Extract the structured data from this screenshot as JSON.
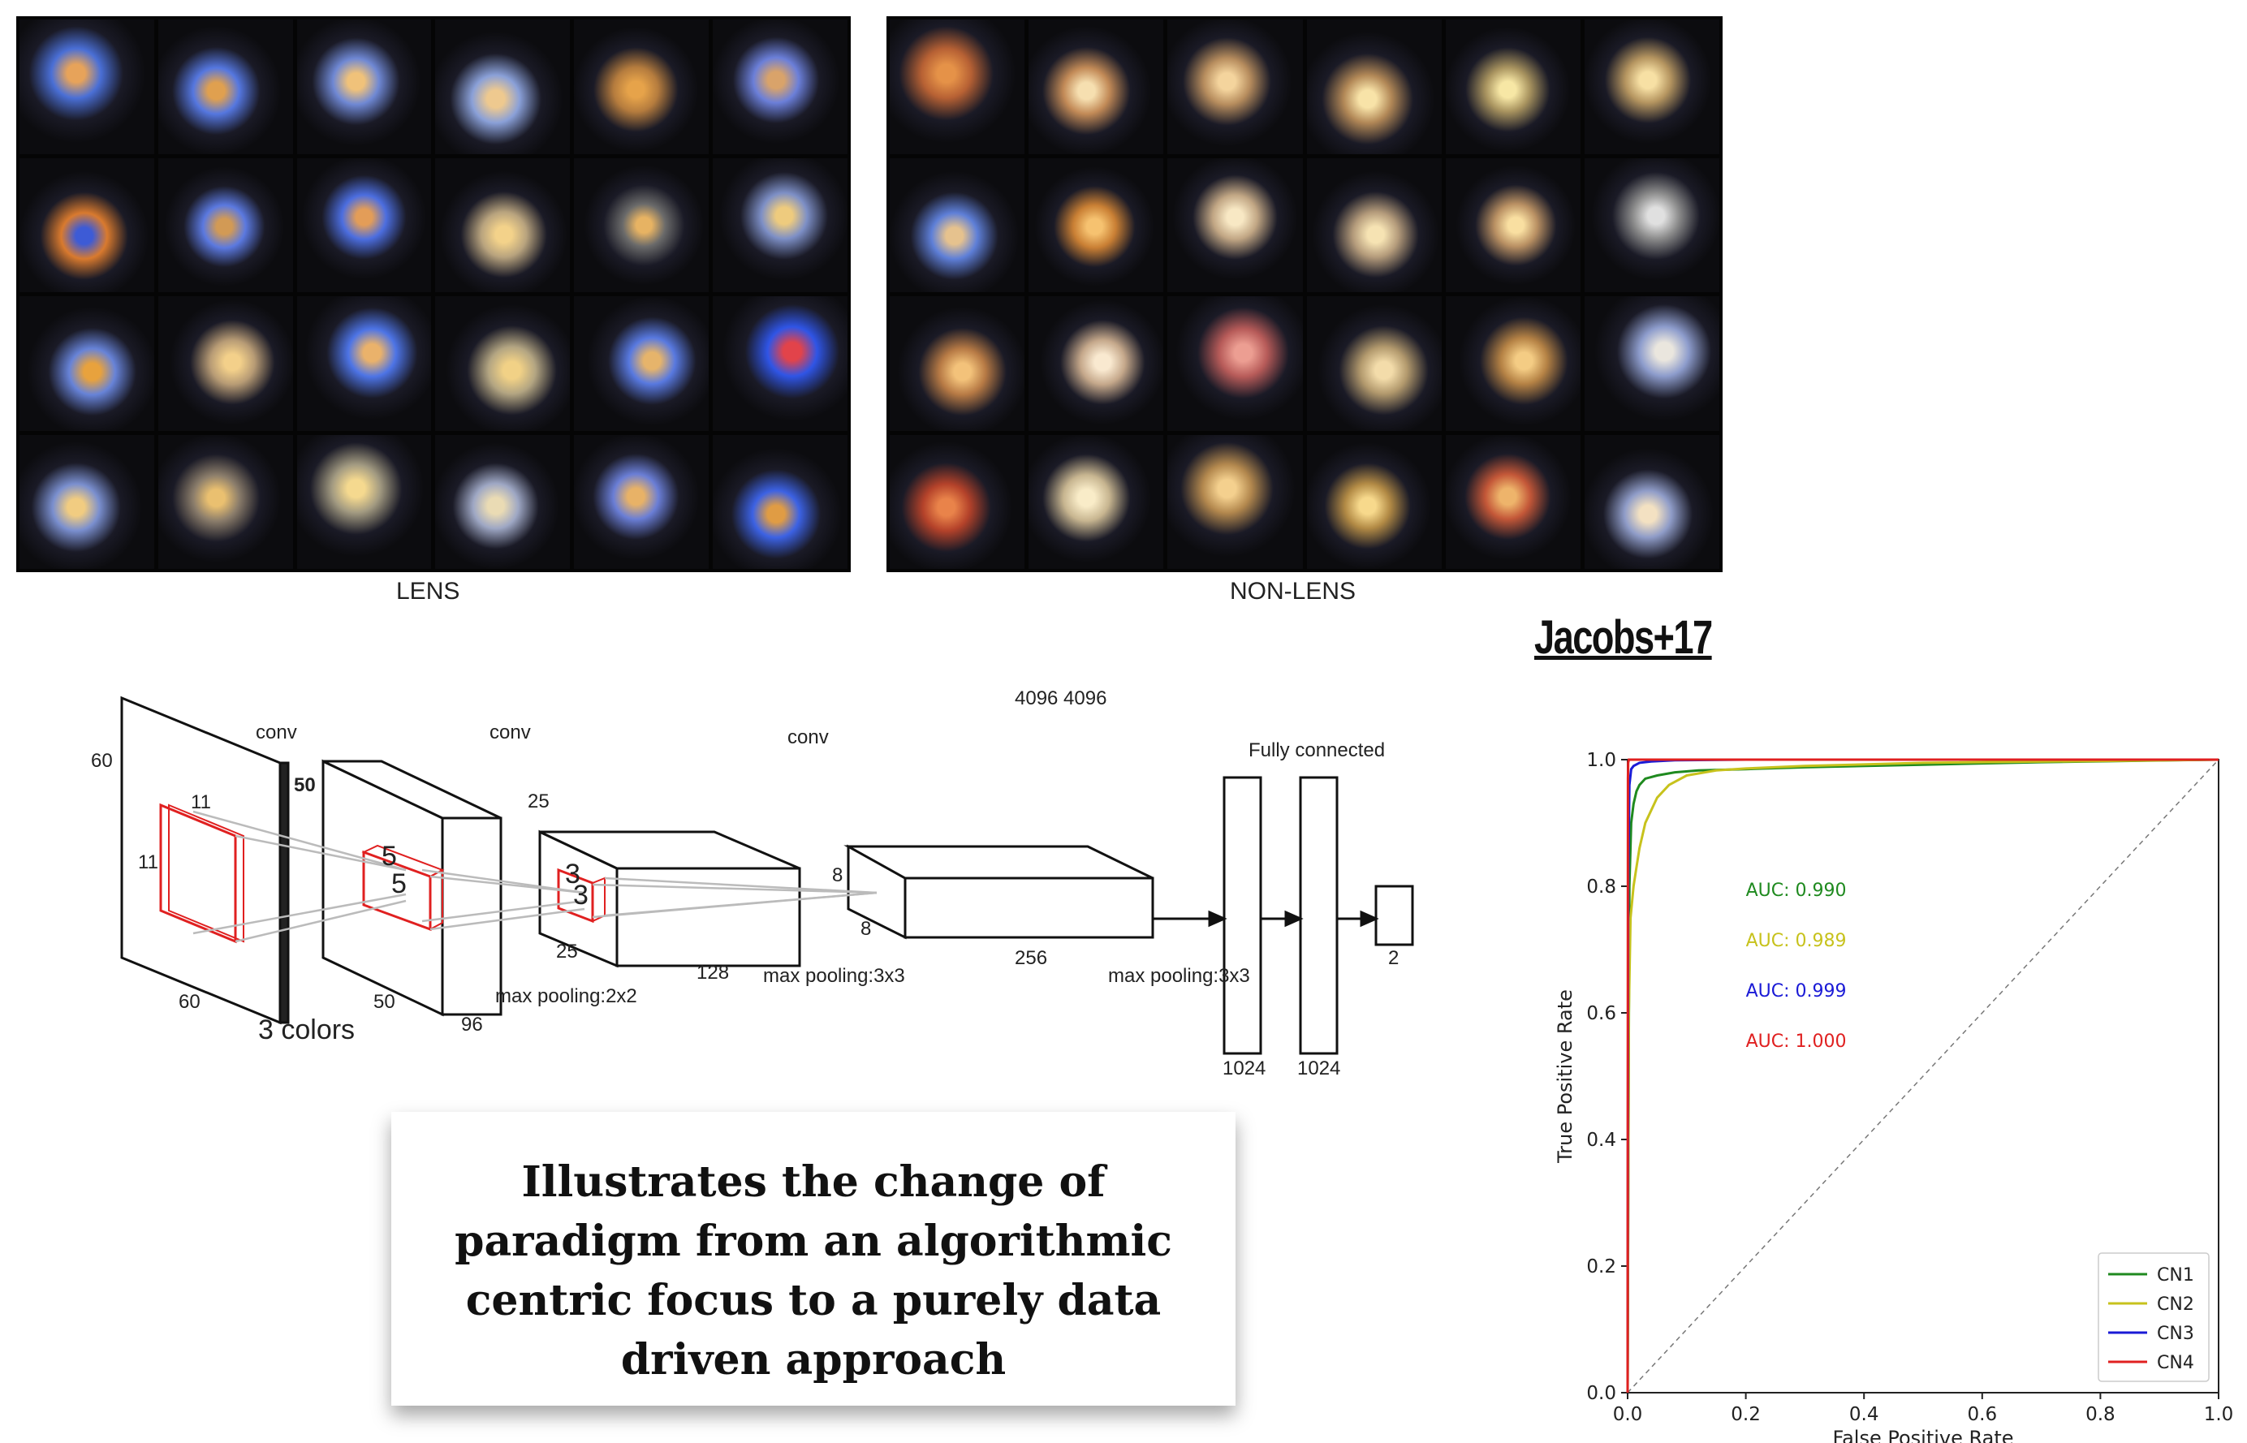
{
  "images": {
    "lens_caption": "LENS",
    "nonlens_caption": "NON-LENS",
    "lens": [
      [
        "#4a6fd6",
        "#e7a35a"
      ],
      [
        "#5577e0",
        "#e0a04f"
      ],
      [
        "#6f88d4",
        "#f0c27a"
      ],
      [
        "#8aa0d8",
        "#eec98f"
      ],
      [
        "#b57c3e",
        "#e6a34a"
      ],
      [
        "#6b7fd9",
        "#d9a36a"
      ],
      [
        "#d97a2e",
        "#3d5bd6"
      ],
      [
        "#5b79e0",
        "#d29a55"
      ],
      [
        "#4c6ee0",
        "#e39d58"
      ],
      [
        "#b8a37e",
        "#f3d28a"
      ],
      [
        "#6a6a6a",
        "#e7b363"
      ],
      [
        "#7d8fc6",
        "#eecb7e"
      ],
      [
        "#6783d8",
        "#e8a23d"
      ],
      [
        "#b79b75",
        "#f3d08a"
      ],
      [
        "#4d74e6",
        "#eab26b"
      ],
      [
        "#b3a582",
        "#f1d186"
      ],
      [
        "#5879e0",
        "#e6b46b"
      ],
      [
        "#2f55e6",
        "#e2434a"
      ],
      [
        "#7a8fcf",
        "#f1cc81"
      ],
      [
        "#8b7d6b",
        "#eac070"
      ],
      [
        "#a29a81",
        "#f5d98f"
      ],
      [
        "#9ea7c4",
        "#eadbb4"
      ],
      [
        "#6a7ed6",
        "#e8b267"
      ],
      [
        "#3c62e4",
        "#e09c44"
      ]
    ],
    "nonlens": [
      [
        "#b76134",
        "#e59248"
      ],
      [
        "#c28a57",
        "#f6dfb0"
      ],
      [
        "#b78d5e",
        "#f4d49d"
      ],
      [
        "#b28857",
        "#f8e3a8"
      ],
      [
        "#a8935f",
        "#f7e7a5"
      ],
      [
        "#b59560",
        "#f7e0a4"
      ],
      [
        "#5e7fd8",
        "#e6c28e"
      ],
      [
        "#c97f34",
        "#f6c270"
      ],
      [
        "#c1a684",
        "#f8e8c4"
      ],
      [
        "#b49b7b",
        "#f6e3b3"
      ],
      [
        "#b99063",
        "#f9dfa1"
      ],
      [
        "#8c8c8c",
        "#e0e0e0"
      ],
      [
        "#b77a45",
        "#f3c27a"
      ],
      [
        "#c5a88b",
        "#f9e9d0"
      ],
      [
        "#b75b59",
        "#ec9e92"
      ],
      [
        "#b2996d",
        "#f3dcaa"
      ],
      [
        "#b58245",
        "#f4cc84"
      ],
      [
        "#8d9ccc",
        "#eae6de"
      ],
      [
        "#b4422a",
        "#e9834a"
      ],
      [
        "#c7b590",
        "#f9ecc8"
      ],
      [
        "#b3884e",
        "#f4d08e"
      ],
      [
        "#b28a45",
        "#f7d98c"
      ],
      [
        "#c35738",
        "#eeb46b"
      ],
      [
        "#8f9cc8",
        "#f3e1c2"
      ]
    ]
  },
  "citation": "Jacobs+17",
  "cnn": {
    "labels": {
      "conv1": "conv",
      "conv2": "conv",
      "conv3": "conv",
      "fc": "Fully connected",
      "cut": "4096   4096",
      "in_h": "60",
      "in_w": "60",
      "colors": "3 colors",
      "k1a": "11",
      "k1b": "11",
      "l1_h": "50",
      "l1_w": "50",
      "l1_d": "96",
      "k2a": "5",
      "k2b": "5",
      "l2_h": "25",
      "l2_w": "25",
      "l2_d": "128",
      "k3a": "3",
      "k3b": "3",
      "l3_a": "8",
      "l3_b": "8",
      "l3_d": "256",
      "pool1": "max pooling:2x2",
      "pool2": "max pooling:3x3",
      "pool3": "max pooling:3x3",
      "fc1": "1024",
      "fc2": "1024",
      "out": "2"
    }
  },
  "quote": "Illustrates the change of paradigm from an algorithmic centric focus to a purely data driven approach",
  "chart_data": {
    "type": "line",
    "xlabel": "False Positive Rate",
    "ylabel": "True Positive Rate",
    "xlim": [
      0.0,
      1.0
    ],
    "ylim": [
      0.0,
      1.0
    ],
    "xticks": [
      "0.0",
      "0.2",
      "0.4",
      "0.6",
      "0.8",
      "1.0"
    ],
    "yticks": [
      "0.0",
      "0.2",
      "0.4",
      "0.6",
      "0.8",
      "1.0"
    ],
    "legend_position": "bottom-right",
    "diagonal": true,
    "series": [
      {
        "name": "CN1",
        "color": "#1f8a1f",
        "auc": "AUC: 0.990",
        "x": [
          0,
          0.001,
          0.003,
          0.006,
          0.01,
          0.015,
          0.02,
          0.03,
          0.05,
          0.08,
          0.12,
          0.2,
          0.3,
          0.5,
          0.7,
          1.0
        ],
        "y": [
          0,
          0.3,
          0.8,
          0.9,
          0.93,
          0.95,
          0.96,
          0.97,
          0.975,
          0.98,
          0.983,
          0.985,
          0.988,
          0.992,
          0.996,
          1.0
        ]
      },
      {
        "name": "CN2",
        "color": "#c7c21c",
        "auc": "AUC: 0.989",
        "x": [
          0,
          0.002,
          0.005,
          0.01,
          0.015,
          0.02,
          0.03,
          0.04,
          0.05,
          0.07,
          0.1,
          0.15,
          0.2,
          0.3,
          0.5,
          1.0
        ],
        "y": [
          0,
          0.6,
          0.75,
          0.8,
          0.83,
          0.86,
          0.9,
          0.92,
          0.94,
          0.96,
          0.975,
          0.983,
          0.986,
          0.99,
          0.995,
          1.0
        ]
      },
      {
        "name": "CN3",
        "color": "#1a1ad6",
        "auc": "AUC: 0.999",
        "x": [
          0,
          0.001,
          0.003,
          0.006,
          0.01,
          0.02,
          0.04,
          0.08,
          0.2,
          1.0
        ],
        "y": [
          0,
          0.8,
          0.96,
          0.985,
          0.99,
          0.995,
          0.997,
          0.999,
          1.0,
          1.0
        ]
      },
      {
        "name": "CN4",
        "color": "#e02020",
        "auc": "AUC: 1.000",
        "x": [
          0,
          0.0005,
          0.001,
          0.002,
          0.01,
          1.0
        ],
        "y": [
          0,
          0.97,
          0.995,
          1.0,
          1.0,
          1.0
        ]
      }
    ]
  }
}
